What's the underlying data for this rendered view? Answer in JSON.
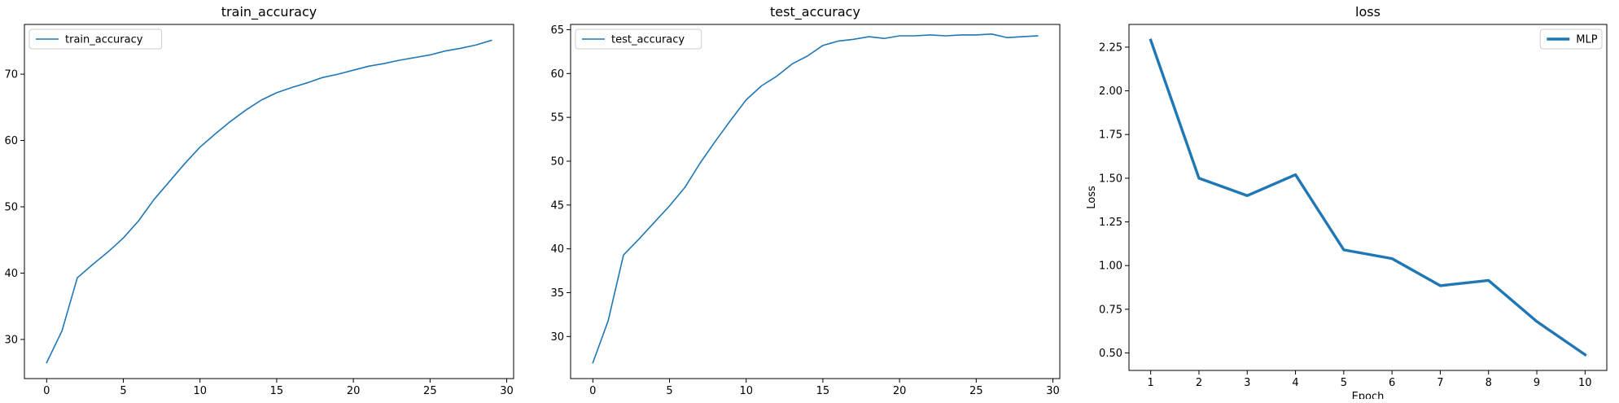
{
  "chart_data": [
    {
      "type": "line",
      "title": "train_accuracy",
      "xlabel": "",
      "ylabel": "",
      "x": [
        0,
        1,
        2,
        3,
        4,
        5,
        6,
        7,
        8,
        9,
        10,
        11,
        12,
        13,
        14,
        15,
        16,
        17,
        18,
        19,
        20,
        21,
        22,
        23,
        24,
        25,
        26,
        27,
        28,
        29
      ],
      "series": [
        {
          "name": "train_accuracy",
          "color": "#1f77b4",
          "values": [
            26.5,
            31.3,
            39.3,
            41.3,
            43.2,
            45.3,
            47.9,
            51.1,
            53.8,
            56.5,
            59.0,
            61.0,
            62.9,
            64.6,
            66.1,
            67.2,
            68.0,
            68.7,
            69.5,
            70.0,
            70.6,
            71.2,
            71.6,
            72.1,
            72.5,
            72.9,
            73.5,
            73.9,
            74.4,
            75.1
          ]
        }
      ],
      "xlim": [
        -1.45,
        30.45
      ],
      "ylim": [
        24.1,
        77.5
      ],
      "xticks": [
        0,
        5,
        10,
        15,
        20,
        25,
        30
      ],
      "yticks": [
        30,
        40,
        50,
        60,
        70
      ],
      "legend": "upper-left",
      "grid": false
    },
    {
      "type": "line",
      "title": "test_accuracy",
      "xlabel": "",
      "ylabel": "",
      "x": [
        0,
        1,
        2,
        3,
        4,
        5,
        6,
        7,
        8,
        9,
        10,
        11,
        12,
        13,
        14,
        15,
        16,
        17,
        18,
        19,
        20,
        21,
        22,
        23,
        24,
        25,
        26,
        27,
        28,
        29
      ],
      "series": [
        {
          "name": "test_accuracy",
          "color": "#1f77b4",
          "values": [
            27.0,
            31.8,
            39.3,
            41.1,
            43.0,
            44.9,
            47.0,
            49.8,
            52.3,
            54.7,
            57.0,
            58.6,
            59.7,
            61.1,
            62.0,
            63.2,
            63.7,
            63.9,
            64.2,
            64.0,
            64.3,
            64.3,
            64.4,
            64.3,
            64.4,
            64.4,
            64.5,
            64.1,
            64.2,
            64.3
          ]
        }
      ],
      "xlim": [
        -1.45,
        30.45
      ],
      "ylim": [
        25.2,
        65.6
      ],
      "xticks": [
        0,
        5,
        10,
        15,
        20,
        25,
        30
      ],
      "yticks": [
        30,
        35,
        40,
        45,
        50,
        55,
        60,
        65
      ],
      "legend": "upper-left",
      "grid": false
    },
    {
      "type": "line",
      "title": "loss",
      "xlabel": "Epoch",
      "ylabel": "Loss",
      "x": [
        1,
        2,
        3,
        4,
        5,
        6,
        7,
        8,
        9,
        10
      ],
      "series": [
        {
          "name": "MLP",
          "color": "#1f77b4",
          "line_width": "thick",
          "values": [
            2.29,
            1.5,
            1.4,
            1.52,
            1.09,
            1.04,
            0.885,
            0.915,
            0.68,
            0.49
          ]
        }
      ],
      "xlim": [
        0.55,
        10.45
      ],
      "ylim": [
        0.4,
        2.38
      ],
      "xticks": [
        1,
        2,
        3,
        4,
        5,
        6,
        7,
        8,
        9,
        10
      ],
      "yticks": [
        0.5,
        0.75,
        1.0,
        1.25,
        1.5,
        1.75,
        2.0,
        2.25
      ],
      "ytick_labels": [
        "0.50",
        "0.75",
        "1.00",
        "1.25",
        "1.50",
        "1.75",
        "2.00",
        "2.25"
      ],
      "legend": "upper-right",
      "grid": false
    }
  ]
}
